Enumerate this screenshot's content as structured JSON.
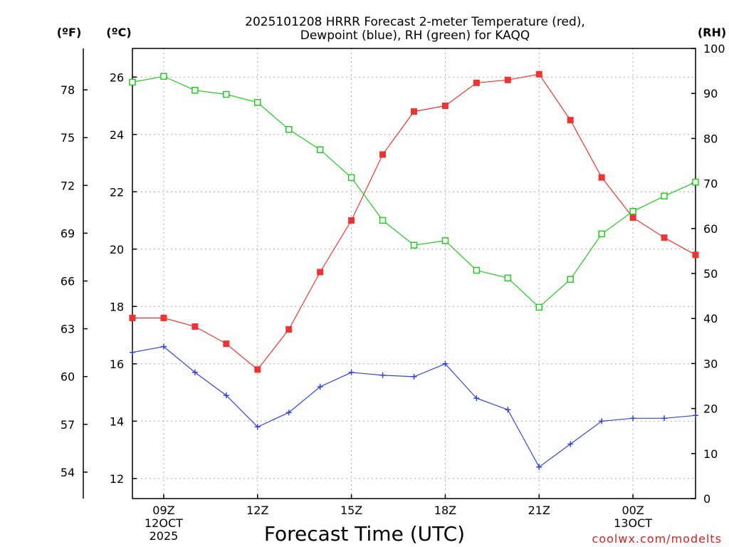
{
  "chart_data": {
    "type": "line",
    "title": [
      "2025101208 HRRR Forecast 2-meter Temperature (red),",
      "Dewpoint (blue), RH (green) for KAQQ"
    ],
    "xlabel": "Forecast Time (UTC)",
    "credit": "coolwx.com/modelts",
    "units": {
      "fahrenheit": "(ºF)",
      "celsius": "(ºC)",
      "rh": "(RH)"
    },
    "x": [
      8,
      9,
      10,
      11,
      12,
      13,
      14,
      15,
      16,
      17,
      18,
      19,
      20,
      21,
      22,
      23,
      24,
      25,
      26
    ],
    "x_ticks": [
      {
        "x": 9,
        "lines": [
          "09Z",
          "12OCT",
          "2025"
        ]
      },
      {
        "x": 12,
        "lines": [
          "12Z"
        ]
      },
      {
        "x": 15,
        "lines": [
          "15Z"
        ]
      },
      {
        "x": 18,
        "lines": [
          "18Z"
        ]
      },
      {
        "x": 21,
        "lines": [
          "21Z"
        ]
      },
      {
        "x": 24,
        "lines": [
          "00Z",
          "13OCT"
        ]
      }
    ],
    "xlim": [
      8,
      26
    ],
    "celsius_axis": {
      "range": [
        11.3,
        27.0
      ],
      "ticks": [
        12,
        14,
        16,
        18,
        20,
        22,
        24,
        26
      ]
    },
    "fahrenheit_axis": {
      "ticks": [
        54,
        57,
        60,
        63,
        66,
        69,
        72,
        75,
        78
      ]
    },
    "rh_axis": {
      "range": [
        0,
        100
      ],
      "ticks": [
        0,
        10,
        20,
        30,
        40,
        50,
        60,
        70,
        80,
        90,
        100
      ]
    },
    "grid": true,
    "series": [
      {
        "name": "Temperature",
        "axis": "celsius",
        "color": "#ee3333",
        "marker": "filled-square",
        "values": [
          17.6,
          17.6,
          17.3,
          16.7,
          15.8,
          17.2,
          19.2,
          21.0,
          23.3,
          24.8,
          25.0,
          25.8,
          25.9,
          26.1,
          24.5,
          22.5,
          21.1,
          20.4,
          19.8
        ]
      },
      {
        "name": "Dewpoint",
        "axis": "celsius",
        "color": "#3344dd",
        "marker": "plus",
        "values": [
          16.4,
          16.6,
          15.7,
          14.9,
          13.8,
          14.3,
          15.2,
          15.7,
          15.6,
          15.55,
          16.0,
          14.8,
          14.4,
          12.4,
          13.2,
          14.0,
          14.1,
          14.1,
          14.2
        ]
      },
      {
        "name": "RH",
        "axis": "rh",
        "color": "#22cc22",
        "marker": "open-square",
        "values": [
          92.5,
          93.8,
          90.7,
          89.8,
          88.0,
          82.0,
          77.5,
          71.3,
          61.8,
          56.3,
          57.3,
          50.7,
          49.0,
          42.5,
          48.7,
          58.8,
          63.8,
          67.2,
          70.3
        ]
      }
    ]
  }
}
